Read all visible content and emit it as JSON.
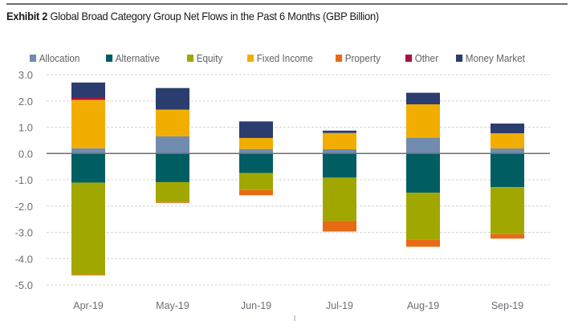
{
  "title": {
    "prefix": "Exhibit 2",
    "text": "Global Broad Category Group Net Flows in the Past 6 Months (GBP Billion)"
  },
  "chart_data": {
    "type": "bar",
    "stacked": true,
    "title": "Exhibit 2 Global Broad Category Group Net Flows in the Past 6 Months (GBP Billion)",
    "xlabel": "",
    "ylabel": "",
    "ylim": [
      -5.0,
      3.0
    ],
    "yticks": [
      "3.0",
      "2.0",
      "1.0",
      "0.0",
      "-1.0",
      "-2.0",
      "-3.0",
      "-4.0",
      "-5.0"
    ],
    "ytick_values": [
      3,
      2,
      1,
      0,
      -1,
      -2,
      -3,
      -4,
      -5
    ],
    "grid": "horizontal-dashed",
    "legend_position": "top",
    "categories": [
      "Apr-19",
      "May-19",
      "Jun-19",
      "Jul-19",
      "Aug-19",
      "Sep-19"
    ],
    "series": [
      {
        "name": "Allocation",
        "color": "#728bb0",
        "values": [
          0.2,
          0.65,
          0.17,
          0.16,
          0.6,
          0.19
        ]
      },
      {
        "name": "Alternative",
        "color": "#005e63",
        "values": [
          -1.11,
          -1.09,
          -0.74,
          -0.92,
          -1.49,
          -1.28
        ]
      },
      {
        "name": "Equity",
        "color": "#a0a800",
        "values": [
          -3.5,
          -0.76,
          -0.65,
          -1.65,
          -1.79,
          -1.79
        ]
      },
      {
        "name": "Fixed Income",
        "color": "#f1ae00",
        "values": [
          1.84,
          1.02,
          0.42,
          0.62,
          1.27,
          0.58
        ]
      },
      {
        "name": "Property",
        "color": "#e86a15",
        "values": [
          -0.03,
          -0.03,
          -0.2,
          -0.4,
          -0.27,
          -0.17
        ]
      },
      {
        "name": "Other",
        "color": "#a8123e",
        "values": [
          0.09,
          0.0,
          0.0,
          0.0,
          0.0,
          0.0
        ]
      },
      {
        "name": "Money Market",
        "color": "#2b3d6e",
        "values": [
          0.57,
          0.82,
          0.63,
          0.09,
          0.44,
          0.37
        ]
      }
    ]
  }
}
